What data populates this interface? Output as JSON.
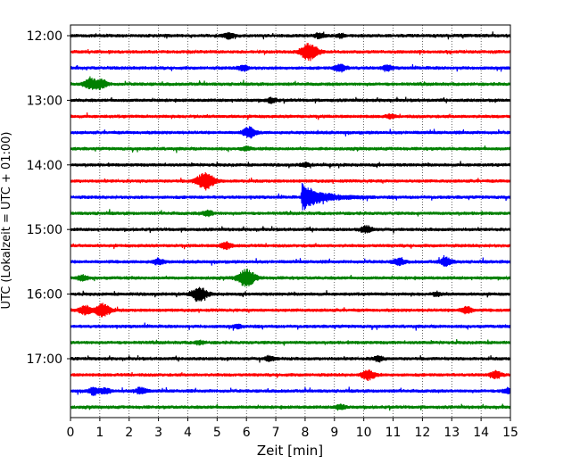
{
  "chart_data": {
    "type": "line",
    "title": "",
    "xlabel": "Zeit  [min]",
    "ylabel": "UTC (Lokalzeit = UTC + 01:00)",
    "xlim": [
      0,
      15
    ],
    "x_ticks": [
      0,
      1,
      2,
      3,
      4,
      5,
      6,
      7,
      8,
      9,
      10,
      11,
      12,
      13,
      14,
      15
    ],
    "y_tick_labels": [
      "12:00",
      "13:00",
      "14:00",
      "15:00",
      "16:00",
      "17:00"
    ],
    "grid": "vertical dotted lines at each minute",
    "trace_interval_minutes": 15,
    "trace_color_cycle": [
      "#000000",
      "#ff0000",
      "#0000ff",
      "#008000"
    ],
    "traces": [
      {
        "start": "12:00",
        "color": "#000000",
        "events": [
          {
            "t": 5.4,
            "amp": 0.35
          },
          {
            "t": 8.5,
            "amp": 0.3
          },
          {
            "t": 9.2,
            "amp": 0.2
          }
        ]
      },
      {
        "start": "12:15",
        "color": "#ff0000",
        "events": [
          {
            "t": 8.15,
            "amp": 1.0
          }
        ]
      },
      {
        "start": "12:30",
        "color": "#0000ff",
        "events": [
          {
            "t": 5.9,
            "amp": 0.35
          },
          {
            "t": 9.2,
            "amp": 0.45
          },
          {
            "t": 10.8,
            "amp": 0.3
          }
        ]
      },
      {
        "start": "12:45",
        "color": "#008000",
        "events": [
          {
            "t": 0.7,
            "amp": 0.6
          },
          {
            "t": 1.05,
            "amp": 0.5
          }
        ]
      },
      {
        "start": "13:00",
        "color": "#000000",
        "events": [
          {
            "t": 6.85,
            "amp": 0.3
          }
        ]
      },
      {
        "start": "13:15",
        "color": "#ff0000",
        "events": [
          {
            "t": 10.9,
            "amp": 0.2
          }
        ]
      },
      {
        "start": "13:30",
        "color": "#0000ff",
        "events": [
          {
            "t": 6.1,
            "amp": 0.6
          }
        ]
      },
      {
        "start": "13:45",
        "color": "#008000",
        "events": [
          {
            "t": 6.0,
            "amp": 0.2
          }
        ]
      },
      {
        "start": "14:00",
        "color": "#000000",
        "events": [
          {
            "t": 8.0,
            "amp": 0.2
          }
        ]
      },
      {
        "start": "14:15",
        "color": "#ff0000",
        "events": [
          {
            "t": 4.6,
            "amp": 1.0
          }
        ]
      },
      {
        "start": "14:30",
        "color": "#0000ff",
        "events": [
          {
            "t": 7.9,
            "amp": 1.6
          }
        ]
      },
      {
        "start": "14:45",
        "color": "#008000",
        "events": [
          {
            "t": 4.7,
            "amp": 0.3
          }
        ]
      },
      {
        "start": "15:00",
        "color": "#000000",
        "events": [
          {
            "t": 10.1,
            "amp": 0.4
          }
        ]
      },
      {
        "start": "15:15",
        "color": "#ff0000",
        "events": [
          {
            "t": 5.3,
            "amp": 0.4
          }
        ]
      },
      {
        "start": "15:30",
        "color": "#0000ff",
        "events": [
          {
            "t": 3.0,
            "amp": 0.35
          },
          {
            "t": 11.2,
            "amp": 0.4
          },
          {
            "t": 12.8,
            "amp": 0.5
          }
        ]
      },
      {
        "start": "15:45",
        "color": "#008000",
        "events": [
          {
            "t": 6.0,
            "amp": 1.0
          },
          {
            "t": 0.4,
            "amp": 0.3
          }
        ]
      },
      {
        "start": "16:00",
        "color": "#000000",
        "events": [
          {
            "t": 4.4,
            "amp": 0.8
          },
          {
            "t": 12.5,
            "amp": 0.2
          }
        ]
      },
      {
        "start": "16:15",
        "color": "#ff0000",
        "events": [
          {
            "t": 0.5,
            "amp": 0.5
          },
          {
            "t": 1.1,
            "amp": 0.8
          },
          {
            "t": 13.5,
            "amp": 0.4
          }
        ]
      },
      {
        "start": "16:30",
        "color": "#0000ff",
        "events": [
          {
            "t": 5.7,
            "amp": 0.2
          }
        ]
      },
      {
        "start": "16:45",
        "color": "#008000",
        "events": [
          {
            "t": 4.4,
            "amp": 0.2
          }
        ]
      },
      {
        "start": "17:00",
        "color": "#000000",
        "events": [
          {
            "t": 6.8,
            "amp": 0.3
          },
          {
            "t": 10.5,
            "amp": 0.3
          }
        ]
      },
      {
        "start": "17:15",
        "color": "#ff0000",
        "events": [
          {
            "t": 10.15,
            "amp": 0.6
          },
          {
            "t": 14.5,
            "amp": 0.4
          }
        ]
      },
      {
        "start": "17:30",
        "color": "#0000ff",
        "events": [
          {
            "t": 0.8,
            "amp": 0.4
          },
          {
            "t": 1.2,
            "amp": 0.3
          },
          {
            "t": 2.4,
            "amp": 0.4
          },
          {
            "t": 14.9,
            "amp": 0.3
          }
        ]
      },
      {
        "start": "17:45",
        "color": "#008000",
        "events": [
          {
            "t": 9.2,
            "amp": 0.3
          }
        ]
      }
    ]
  }
}
